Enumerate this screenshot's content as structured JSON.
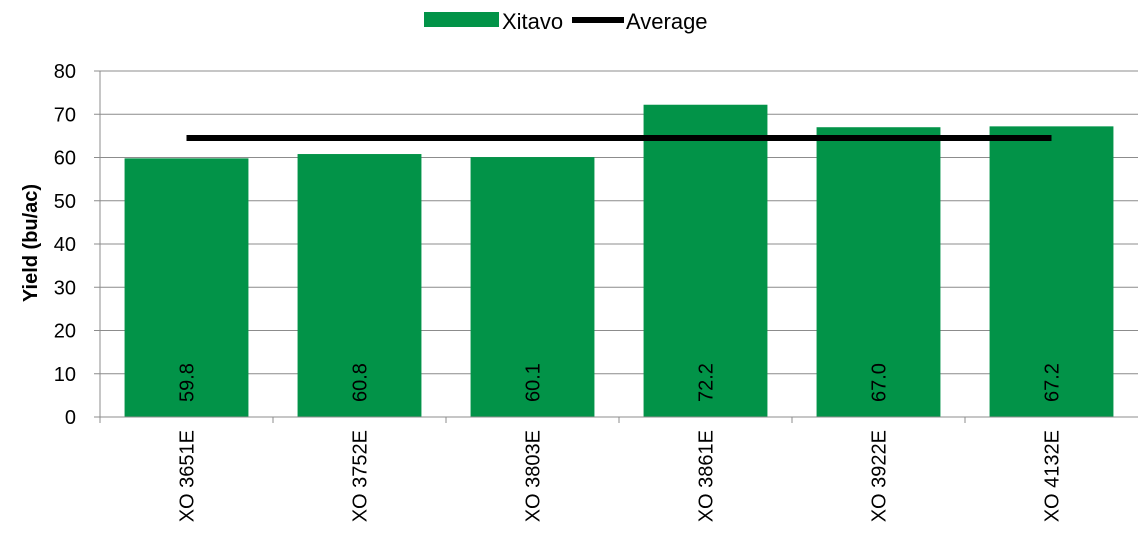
{
  "chart_data": {
    "type": "bar",
    "categories": [
      "XO 3651E",
      "XO 3752E",
      "XO 3803E",
      "XO 3861E",
      "XO 3922E",
      "XO 4132E"
    ],
    "series": [
      {
        "name": "Xitavo",
        "kind": "bar",
        "color": "#029348",
        "values": [
          59.8,
          60.8,
          60.1,
          72.2,
          67.0,
          67.2
        ],
        "labels": [
          "59.8",
          "60.8",
          "60.1",
          "72.2",
          "67.0",
          "67.2"
        ]
      },
      {
        "name": "Average",
        "kind": "line",
        "color": "#000000",
        "value": 64.5
      }
    ],
    "ylabel": "Yield (bu/ac)",
    "xlabel": "",
    "ylim": [
      0,
      80
    ],
    "yticks": [
      0,
      10,
      20,
      30,
      40,
      50,
      60,
      70,
      80
    ],
    "ytick_labels": [
      "0",
      "10",
      "20",
      "30",
      "40",
      "50",
      "60",
      "70",
      "80"
    ],
    "grid": "horizontal",
    "legend": "top-center"
  }
}
